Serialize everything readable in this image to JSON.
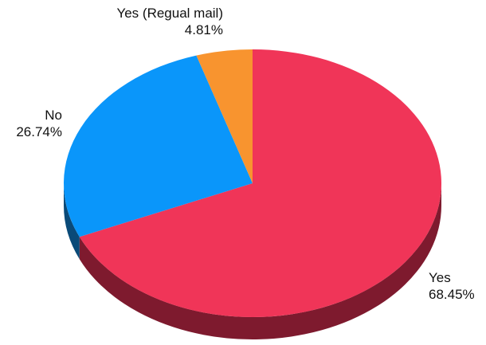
{
  "chart_data": {
    "type": "pie",
    "title": "",
    "series": [
      {
        "values": [
          68.45,
          26.74,
          4.81
        ]
      }
    ],
    "slices": [
      {
        "label": "Yes",
        "value": 68.45,
        "value_text": "68.45%",
        "color": "#f03558",
        "side_color": "#7e1a2e"
      },
      {
        "label": "No",
        "value": 26.74,
        "value_text": "26.74%",
        "color": "#0a96fa",
        "side_color": "#0a4a78"
      },
      {
        "label": "Yes (Regual mail)",
        "value": 4.81,
        "value_text": "4.81%",
        "color": "#f8942f",
        "side_color": "#8a4e12"
      }
    ],
    "three_d": true,
    "legend": "none",
    "labels_position": "outside"
  }
}
